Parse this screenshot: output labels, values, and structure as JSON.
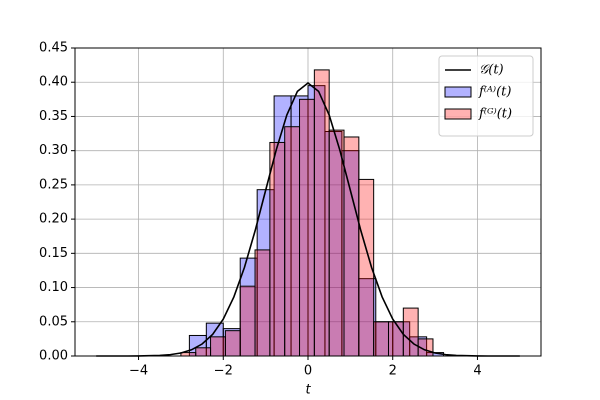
{
  "chart_data": {
    "type": "histogram",
    "xlabel": "t",
    "xlim": [
      -5.5,
      5.5
    ],
    "ylim": [
      0,
      0.45
    ],
    "xticks": [
      {
        "value": -4,
        "label": "−4"
      },
      {
        "value": -2,
        "label": "−2"
      },
      0,
      2,
      4
    ],
    "yticks": [
      {
        "value": 0,
        "label": "0.00"
      },
      {
        "value": 0.05,
        "label": "0.05"
      },
      {
        "value": 0.1,
        "label": "0.10"
      },
      {
        "value": 0.15,
        "label": "0.15"
      },
      {
        "value": 0.2,
        "label": "0.20"
      },
      {
        "value": 0.25,
        "label": "0.25"
      },
      {
        "value": 0.3,
        "label": "0.30"
      },
      {
        "value": 0.35,
        "label": "0.35"
      },
      {
        "value": 0.4,
        "label": "0.40"
      },
      {
        "value": 0.45,
        "label": "0.45"
      }
    ],
    "grid": true,
    "legend": "upper right",
    "series": [
      {
        "name": "𝒢(t)",
        "type": "line",
        "color": "#000000",
        "x": [
          -5,
          -4.75,
          -4.5,
          -4.25,
          -4,
          -3.75,
          -3.5,
          -3.25,
          -3,
          -2.75,
          -2.5,
          -2.25,
          -2,
          -1.75,
          -1.5,
          -1.25,
          -1,
          -0.75,
          -0.5,
          -0.25,
          0,
          0.25,
          0.5,
          0.75,
          1,
          1.25,
          1.5,
          1.75,
          2,
          2.25,
          2.5,
          2.75,
          3,
          3.25,
          3.5,
          3.75,
          4,
          4.25,
          4.5,
          4.75,
          5
        ],
        "values": [
          0,
          0,
          0,
          0,
          0.0001,
          0.0004,
          0.0009,
          0.002,
          0.0044,
          0.0091,
          0.0175,
          0.0317,
          0.054,
          0.0863,
          0.1295,
          0.1826,
          0.242,
          0.3011,
          0.3521,
          0.3867,
          0.3989,
          0.3867,
          0.3521,
          0.3011,
          0.242,
          0.1826,
          0.1295,
          0.0863,
          0.054,
          0.0317,
          0.0175,
          0.0091,
          0.0044,
          0.002,
          0.0009,
          0.0004,
          0.0001,
          0,
          0,
          0,
          0
        ]
      },
      {
        "name": "f⁽ᴬ⁾(t)",
        "type": "histogram",
        "color": "#0000ff",
        "bins": [
          -2.8,
          -2.4,
          -2.0,
          -1.6,
          -1.2,
          -0.8,
          -0.4,
          0,
          0.4,
          0.8,
          1.2,
          1.6,
          2.0,
          2.4,
          2.8,
          3.2
        ],
        "values": [
          0.03,
          0.048,
          0.04,
          0.143,
          0.243,
          0.38,
          0.38,
          0.395,
          0.328,
          0.3,
          0.113,
          0.05,
          0.05,
          0.028,
          0.005
        ]
      },
      {
        "name": "f⁽ᴳ⁾(t)",
        "type": "histogram",
        "color": "#ff0000",
        "bins": [
          -3.0,
          -2.65,
          -2.3,
          -1.95,
          -1.6,
          -1.25,
          -0.9,
          -0.55,
          -0.2,
          0.15,
          0.5,
          0.85,
          1.2,
          1.55,
          1.9,
          2.25,
          2.6,
          2.95
        ],
        "values": [
          0.005,
          0.012,
          0.028,
          0.037,
          0.102,
          0.155,
          0.312,
          0.335,
          0.375,
          0.418,
          0.33,
          0.32,
          0.258,
          0.05,
          0.05,
          0.07,
          0.025
        ]
      }
    ]
  }
}
